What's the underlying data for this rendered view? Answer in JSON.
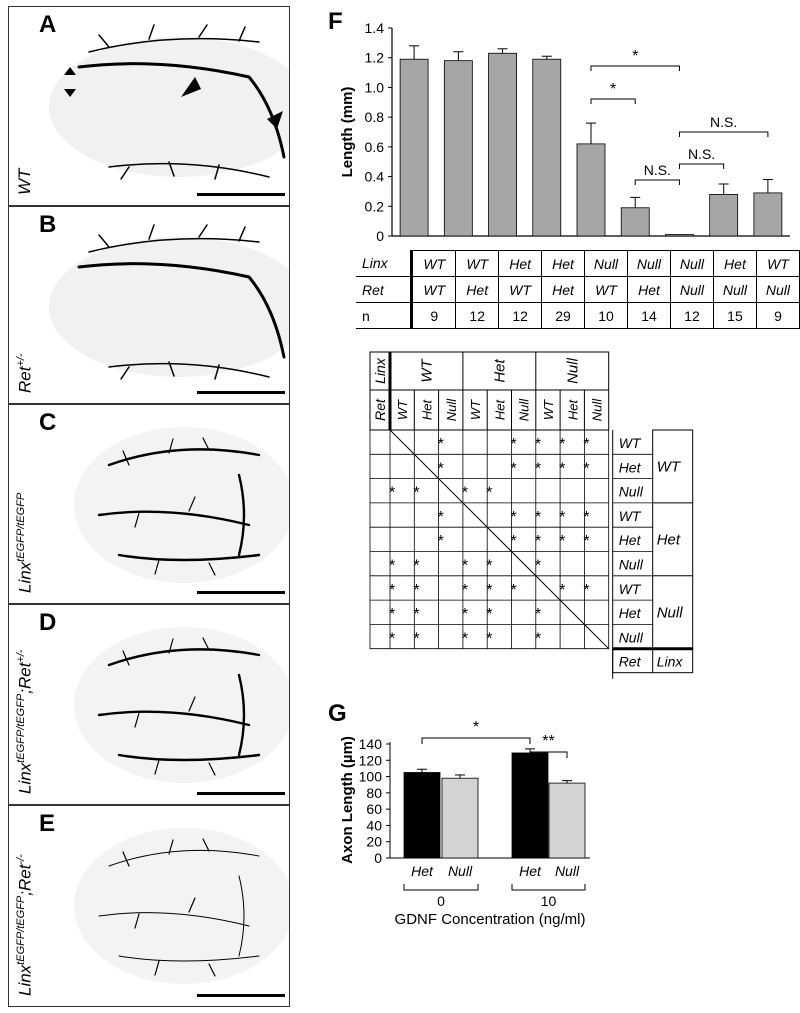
{
  "panels": [
    {
      "letter": "A",
      "genotype": "WT",
      "sup": ""
    },
    {
      "letter": "B",
      "genotype": "Ret",
      "sup": "+/-"
    },
    {
      "letter": "C",
      "genotype": "Linx",
      "sup": "tEGFP/tEGFP"
    },
    {
      "letter": "D",
      "genotype": "Linx",
      "sup": "tEGFP/tEGFP",
      "genotype2": ";Ret",
      "sup2": "+/-"
    },
    {
      "letter": "E",
      "genotype": "Linx",
      "sup": "tEGFP/tEGFP",
      "genotype2": ";Ret",
      "sup2": "-/-"
    }
  ],
  "panel_f": {
    "letter": "F",
    "chart_data": {
      "type": "bar",
      "ylabel": "Length (mm)",
      "ylim": [
        0,
        1.4
      ],
      "yticks": [
        "0",
        "0.2",
        "0.4",
        "0.6",
        "0.8",
        "1.0",
        "1.2",
        "1.4"
      ],
      "values": [
        1.19,
        1.18,
        1.23,
        1.19,
        0.62,
        0.19,
        0.01,
        0.28,
        0.29
      ],
      "errors": [
        0.09,
        0.06,
        0.03,
        0.02,
        0.14,
        0.07,
        0.0,
        0.07,
        0.09
      ],
      "color": "#a6a6a6",
      "significance": [
        {
          "from": 4,
          "to": 6,
          "label": "*"
        },
        {
          "from": 4,
          "to": 5,
          "label": "*"
        },
        {
          "from": 6,
          "to": 8,
          "label": "N.S."
        },
        {
          "from": 6,
          "to": 7,
          "label": "N.S."
        },
        {
          "from": 5,
          "to": 6,
          "label": "N.S."
        }
      ]
    },
    "table": {
      "rows": [
        {
          "header": "Linx",
          "cells": [
            "WT",
            "WT",
            "Het",
            "Het",
            "Null",
            "Null",
            "Null",
            "Het",
            "WT"
          ]
        },
        {
          "header": "Ret",
          "cells": [
            "WT",
            "Het",
            "WT",
            "Het",
            "WT",
            "Het",
            "Null",
            "Null",
            "Null"
          ]
        },
        {
          "header": "n",
          "cells": [
            "9",
            "12",
            "12",
            "29",
            "10",
            "14",
            "12",
            "15",
            "9"
          ]
        }
      ]
    }
  },
  "matrix": {
    "top_linx": "Linx",
    "top_ret": "Ret",
    "groups": [
      "WT",
      "Het",
      "Null"
    ],
    "sub": [
      "WT",
      "Het",
      "Null"
    ],
    "right_ret": "Ret",
    "right_linx": "Linx",
    "star": "*",
    "cells": [
      [
        0,
        0,
        1,
        0,
        0,
        1,
        1,
        1,
        1
      ],
      [
        0,
        0,
        1,
        0,
        0,
        1,
        1,
        1,
        1
      ],
      [
        1,
        1,
        0,
        1,
        1,
        0,
        0,
        0,
        0
      ],
      [
        0,
        0,
        1,
        0,
        0,
        1,
        1,
        1,
        1
      ],
      [
        0,
        0,
        1,
        0,
        0,
        1,
        1,
        1,
        1
      ],
      [
        1,
        1,
        0,
        1,
        1,
        0,
        1,
        0,
        0
      ],
      [
        1,
        1,
        0,
        1,
        1,
        1,
        0,
        1,
        1
      ],
      [
        1,
        1,
        0,
        1,
        1,
        0,
        1,
        0,
        0
      ],
      [
        1,
        1,
        0,
        1,
        1,
        0,
        1,
        0,
        0
      ]
    ]
  },
  "panel_g": {
    "letter": "G",
    "chart_data": {
      "type": "bar",
      "ylabel": "Axon Length (µm)",
      "xlabel": "GDNF Concentration (ng/ml)",
      "ylim": [
        0,
        140
      ],
      "yticks": [
        "0",
        "20",
        "40",
        "60",
        "80",
        "100",
        "120",
        "140"
      ],
      "groups": [
        {
          "conc": "0",
          "bars": [
            {
              "name": "Het",
              "value": 105,
              "err": 4,
              "color": "#000000"
            },
            {
              "name": "Null",
              "value": 98,
              "err": 4,
              "color": "#d3d3d3"
            }
          ]
        },
        {
          "conc": "10",
          "bars": [
            {
              "name": "Het",
              "value": 129,
              "err": 5,
              "color": "#000000"
            },
            {
              "name": "Null",
              "value": 92,
              "err": 3,
              "color": "#d3d3d3"
            }
          ]
        }
      ],
      "significance": [
        {
          "label": "*"
        },
        {
          "label": "**"
        }
      ]
    }
  }
}
